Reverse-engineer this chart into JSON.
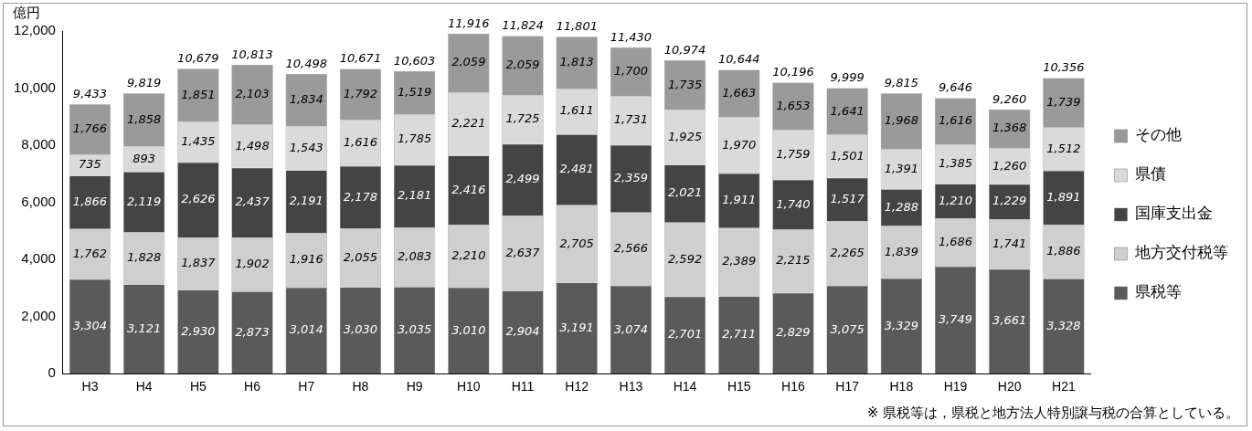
{
  "chart_data": {
    "type": "bar",
    "stacked": true,
    "ylabel": "億円",
    "categories": [
      "H3",
      "H4",
      "H5",
      "H6",
      "H7",
      "H8",
      "H9",
      "H10",
      "H11",
      "H12",
      "H13",
      "H14",
      "H15",
      "H16",
      "H17",
      "H18",
      "H19",
      "H20",
      "H21"
    ],
    "series": [
      {
        "name": "県税等",
        "color": "#5a5a5a",
        "values": [
          3304,
          3121,
          2930,
          2873,
          3014,
          3030,
          3035,
          3010,
          2904,
          3191,
          3074,
          2701,
          2711,
          2829,
          3075,
          3329,
          3749,
          3661,
          3328
        ],
        "value_labels": [
          "3,304",
          "3,121",
          "2,930",
          "2,873",
          "3,014",
          "3,030",
          "3,035",
          "3,010",
          "2,904",
          "3,191",
          "3,074",
          "2,701",
          "2,711",
          "2,829",
          "3,075",
          "3,329",
          "3,749",
          "3,661",
          "3,328"
        ]
      },
      {
        "name": "地方交付税等",
        "color": "#cfcfcf",
        "values": [
          1762,
          1828,
          1837,
          1902,
          1916,
          2055,
          2083,
          2210,
          2637,
          2705,
          2566,
          2592,
          2389,
          2215,
          2265,
          1839,
          1686,
          1741,
          1886
        ],
        "value_labels": [
          "1,762",
          "1,828",
          "1,837",
          "1,902",
          "1,916",
          "2,055",
          "2,083",
          "2,210",
          "2,637",
          "2,705",
          "2,566",
          "2,592",
          "2,389",
          "2,215",
          "2,265",
          "1,839",
          "1,686",
          "1,741",
          "1,886"
        ]
      },
      {
        "name": "国庫支出金",
        "color": "#444444",
        "values": [
          1866,
          2119,
          2626,
          2437,
          2191,
          2178,
          2181,
          2416,
          2499,
          2481,
          2359,
          2021,
          1911,
          1740,
          1517,
          1288,
          1210,
          1229,
          1891
        ],
        "value_labels": [
          "1,866",
          "2,119",
          "2,626",
          "2,437",
          "2,191",
          "2,178",
          "2,181",
          "2,416",
          "2,499",
          "2,481",
          "2,359",
          "2,021",
          "1,911",
          "1,740",
          "1,517",
          "1,288",
          "1,210",
          "1,229",
          "1,891"
        ]
      },
      {
        "name": "県債",
        "color": "#dadada",
        "values": [
          735,
          893,
          1435,
          1498,
          1543,
          1616,
          1785,
          2221,
          1725,
          1611,
          1731,
          1925,
          1970,
          1759,
          1501,
          1391,
          1385,
          1260,
          1512
        ],
        "value_labels": [
          "735",
          "893",
          "1,435",
          "1,498",
          "1,543",
          "1,616",
          "1,785",
          "2,221",
          "1,725",
          "1,611",
          "1,731",
          "1,925",
          "1,970",
          "1,759",
          "1,501",
          "1,391",
          "1,385",
          "1,260",
          "1,512"
        ]
      },
      {
        "name": "その他",
        "color": "#9a9a9a",
        "values": [
          1766,
          1858,
          1851,
          2103,
          1834,
          1792,
          1519,
          2059,
          2059,
          1813,
          1700,
          1735,
          1663,
          1653,
          1641,
          1968,
          1616,
          1368,
          1739
        ],
        "value_labels": [
          "1,766",
          "1,858",
          "1,851",
          "2,103",
          "1,834",
          "1,792",
          "1,519",
          "2,059",
          "2,059",
          "1,813",
          "1,700",
          "1,735",
          "1,663",
          "1,653",
          "1,641",
          "1,968",
          "1,616",
          "1,368",
          "1,739"
        ]
      }
    ],
    "totals": [
      "9,433",
      "9,819",
      "10,679",
      "10,813",
      "10,498",
      "10,671",
      "10,603",
      "11,916",
      "11,824",
      "11,801",
      "11,430",
      "10,974",
      "10,644",
      "10,196",
      "9,999",
      "9,815",
      "9,646",
      "9,260",
      "10,356"
    ],
    "ylim": [
      0,
      12000
    ],
    "yticks": [
      {
        "value": 0,
        "label": "0"
      },
      {
        "value": 2000,
        "label": "2,000"
      },
      {
        "value": 4000,
        "label": "4,000"
      },
      {
        "value": 6000,
        "label": "6,000"
      },
      {
        "value": 8000,
        "label": "8,000"
      },
      {
        "value": 10000,
        "label": "10,000"
      },
      {
        "value": 12000,
        "label": "12,000"
      }
    ],
    "grid": false,
    "legend": "right",
    "annotations": [
      "※ 県税等は，県税と地方法人特別譲与税の合算としている。"
    ]
  }
}
